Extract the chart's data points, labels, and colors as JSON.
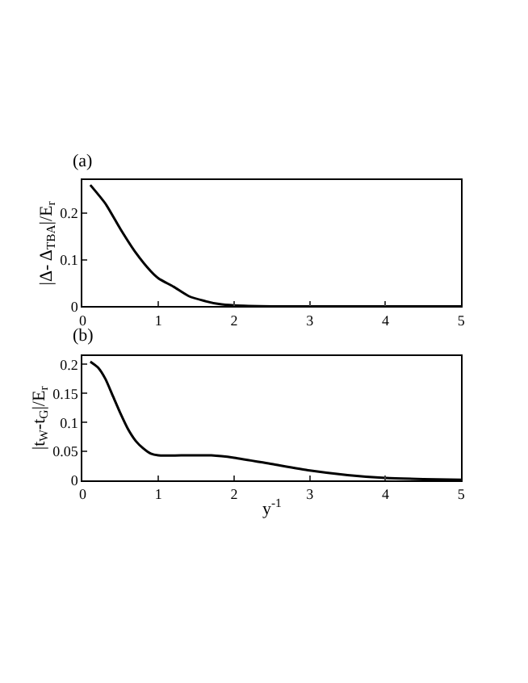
{
  "chart_data": [
    {
      "type": "line",
      "title": "(a)",
      "ylabel": "|Δ- Δ$_{TBA}$|/E$_{r}$",
      "x": [
        0.1,
        0.3,
        0.5,
        0.7,
        0.9,
        1.0,
        1.2,
        1.4,
        1.6,
        1.8,
        2.0,
        2.5,
        3.0,
        4.0,
        5.0
      ],
      "series": [
        {
          "color": "#000000",
          "values": [
            0.26,
            0.22,
            0.165,
            0.115,
            0.075,
            0.06,
            0.042,
            0.022,
            0.012,
            0.005,
            0.002,
            0.0,
            0.0,
            0.0,
            0.0
          ]
        }
      ],
      "xlim": [
        0,
        5
      ],
      "xticks": [
        0,
        1,
        2,
        3,
        4,
        5
      ],
      "ylim": [
        0,
        0.27
      ],
      "yticks": [
        0,
        0.1,
        0.2
      ]
    },
    {
      "type": "line",
      "title": "(b)",
      "xlabel": "y$^{-1}$",
      "ylabel": "|t$_{W}$-t$_{G}$|/E$_{r}$",
      "x": [
        0.1,
        0.2,
        0.3,
        0.4,
        0.5,
        0.6,
        0.7,
        0.8,
        0.9,
        1.0,
        1.3,
        1.7,
        2.0,
        2.5,
        3.0,
        3.5,
        4.0,
        4.5,
        5.0
      ],
      "series": [
        {
          "color": "#000000",
          "values": [
            0.205,
            0.195,
            0.175,
            0.145,
            0.115,
            0.088,
            0.068,
            0.055,
            0.046,
            0.043,
            0.043,
            0.043,
            0.039,
            0.028,
            0.017,
            0.009,
            0.004,
            0.002,
            0.001
          ]
        }
      ],
      "xlim": [
        0,
        5
      ],
      "xticks": [
        0,
        1,
        2,
        3,
        4,
        5
      ],
      "ylim": [
        0,
        0.215
      ],
      "yticks": [
        0,
        0.05,
        0.1,
        0.15,
        0.2
      ]
    }
  ]
}
